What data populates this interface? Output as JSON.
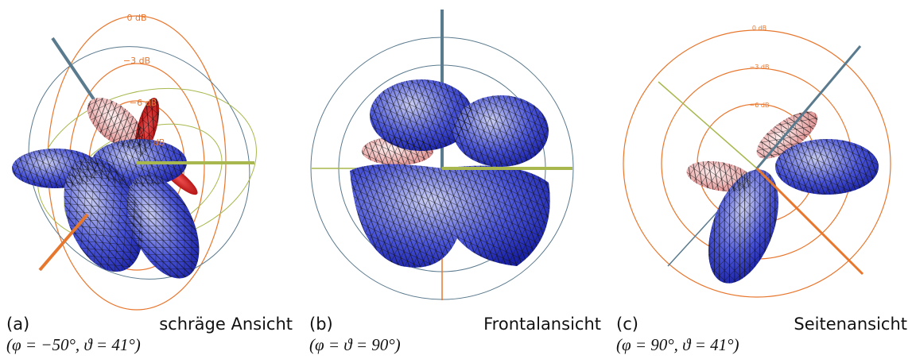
{
  "panels": [
    {
      "label": "(a)",
      "title": "schräge Ansicht",
      "angles": "(φ = −50°, ϑ = 41°)",
      "db_labels": [
        "0 dB",
        "−3 dB",
        "−6 dB",
        "dB"
      ]
    },
    {
      "label": "(b)",
      "title": "Frontalansicht",
      "angles": "(φ = ϑ = 90°)"
    },
    {
      "label": "(c)",
      "title": "Seitenansicht",
      "angles": "(φ = 90°, ϑ = 41°)",
      "db_labels": [
        "0 dB",
        "−3 dB",
        "−6 dB"
      ]
    }
  ]
}
